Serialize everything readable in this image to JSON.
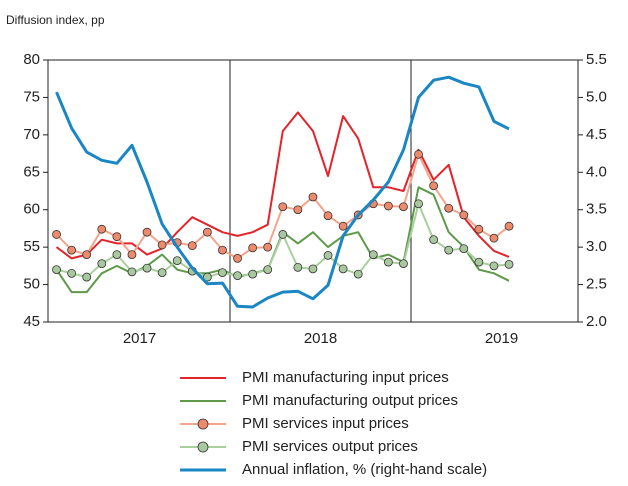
{
  "chart_data": {
    "type": "line",
    "subtitle": "Diffusion index, pp",
    "x_labels": [
      "2017",
      "2018",
      "2019"
    ],
    "ylim": [
      45,
      80
    ],
    "yticks": [
      45,
      50,
      55,
      60,
      65,
      70,
      75,
      80
    ],
    "y2lim": [
      2.0,
      5.5
    ],
    "y2ticks": [
      {
        "value": 2.0,
        "label": "2.0"
      },
      {
        "value": 2.5,
        "label": "2.5"
      },
      {
        "value": 3.0,
        "label": "3.0"
      },
      {
        "value": 3.5,
        "label": "3.5"
      },
      {
        "value": 4.0,
        "label": "4.0"
      },
      {
        "value": 4.5,
        "label": "4.5"
      },
      {
        "value": 5.0,
        "label": "5.0"
      },
      {
        "value": 5.5,
        "label": "5.5"
      }
    ],
    "legend": "bottom",
    "series": [
      {
        "name": "PMI manufacturing input prices",
        "color": "#e3242b",
        "marker": false,
        "values": [
          55,
          53.5,
          54,
          56,
          55.5,
          55.5,
          54,
          54.8,
          57,
          59,
          58,
          57,
          56.5,
          57,
          58,
          70.5,
          73,
          70.5,
          64.5,
          72.5,
          69.5,
          63,
          63,
          62.5,
          68,
          64,
          66,
          59,
          56.5,
          54.5,
          53.7
        ]
      },
      {
        "name": "PMI manufacturing output prices",
        "color": "#5e9a4a",
        "marker": false,
        "values": [
          52,
          49,
          49,
          51.5,
          52.5,
          51.5,
          52.5,
          54,
          52,
          51.5,
          51.5,
          52,
          51,
          51.5,
          52,
          57,
          55.5,
          57,
          55,
          56.5,
          57,
          53.5,
          54,
          53,
          63,
          62,
          57,
          55,
          52,
          51.5,
          50.5
        ]
      },
      {
        "name": "PMI services input prices",
        "color": "#f1a58c",
        "marker": true,
        "marker_color": "#ee8a6c",
        "values": [
          56.7,
          54.6,
          54,
          57.4,
          56.4,
          54,
          57,
          55.3,
          55.6,
          55.2,
          57,
          54.6,
          53.5,
          54.9,
          55,
          60.4,
          60,
          61.7,
          59.2,
          57.8,
          59.3,
          60.8,
          60.5,
          60.4,
          67.4,
          63.2,
          60.2,
          59.3,
          57.4,
          56.2,
          57.8
        ]
      },
      {
        "name": "PMI services output prices",
        "color": "#a9cf9c",
        "marker": true,
        "marker_color": "#a9c8a0",
        "values": [
          52,
          51.5,
          51,
          52.8,
          54,
          51.7,
          52.2,
          51.6,
          53.2,
          51.8,
          51,
          51.6,
          51.2,
          51.4,
          52,
          56.7,
          52.3,
          52.1,
          53.9,
          52.1,
          51.4,
          54,
          53,
          52.8,
          60.8,
          56,
          54.6,
          54.8,
          53,
          52.5,
          52.7
        ]
      },
      {
        "name": "Annual inflation, % (right-hand scale)",
        "color": "#1a86c3",
        "marker": false,
        "axis": "y2",
        "values": [
          5.07,
          4.59,
          4.27,
          4.16,
          4.12,
          4.36,
          3.87,
          3.31,
          3.0,
          2.72,
          2.51,
          2.52,
          2.21,
          2.2,
          2.32,
          2.4,
          2.41,
          2.31,
          2.49,
          3.15,
          3.43,
          3.63,
          3.87,
          4.3,
          5.0,
          5.23,
          5.27,
          5.19,
          5.14,
          4.68,
          4.58
        ]
      }
    ]
  }
}
